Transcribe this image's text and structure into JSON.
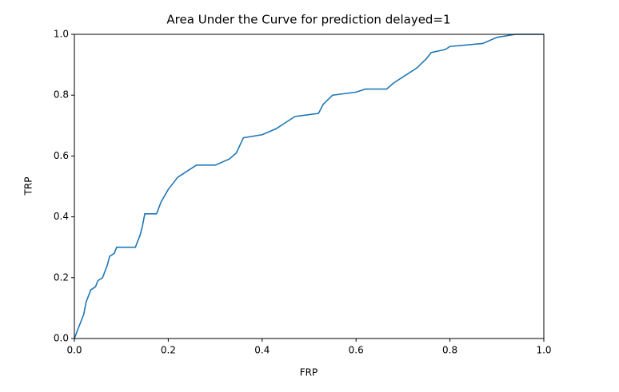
{
  "chart_data": {
    "type": "line",
    "title": "Area Under the Curve for prediction delayed=1",
    "xlabel": "FRP",
    "ylabel": "TRP",
    "x": [
      0,
      0.005,
      0.01,
      0.015,
      0.02,
      0.025,
      0.03,
      0.035,
      0.045,
      0.05,
      0.06,
      0.065,
      0.07,
      0.075,
      0.085,
      0.09,
      0.13,
      0.14,
      0.145,
      0.15,
      0.175,
      0.185,
      0.2,
      0.21,
      0.22,
      0.24,
      0.26,
      0.3,
      0.33,
      0.345,
      0.36,
      0.4,
      0.43,
      0.45,
      0.47,
      0.52,
      0.53,
      0.55,
      0.6,
      0.62,
      0.665,
      0.68,
      0.7,
      0.71,
      0.73,
      0.75,
      0.76,
      0.79,
      0.8,
      0.87,
      0.9,
      0.94,
      1
    ],
    "series": [
      {
        "color": "#1f77b4",
        "values": [
          0,
          0.02,
          0.04,
          0.06,
          0.08,
          0.12,
          0.14,
          0.16,
          0.17,
          0.19,
          0.2,
          0.22,
          0.24,
          0.27,
          0.28,
          0.3,
          0.3,
          0.34,
          0.37,
          0.41,
          0.41,
          0.45,
          0.49,
          0.51,
          0.53,
          0.55,
          0.57,
          0.57,
          0.59,
          0.61,
          0.66,
          0.67,
          0.69,
          0.71,
          0.73,
          0.74,
          0.77,
          0.8,
          0.81,
          0.82,
          0.82,
          0.84,
          0.86,
          0.87,
          0.89,
          0.92,
          0.94,
          0.95,
          0.96,
          0.97,
          0.99,
          1,
          1
        ]
      }
    ],
    "xlim": [
      0,
      1
    ],
    "ylim": [
      0,
      1
    ],
    "xticks": [
      {
        "value": 0,
        "label": "0.0"
      },
      0.2,
      0.4,
      0.6,
      0.8,
      {
        "value": 1,
        "label": "1.0"
      }
    ],
    "yticks": [
      {
        "value": 0,
        "label": "0.0"
      },
      0.2,
      0.4,
      0.6,
      0.8,
      {
        "value": 1,
        "label": "1.0"
      }
    ]
  }
}
